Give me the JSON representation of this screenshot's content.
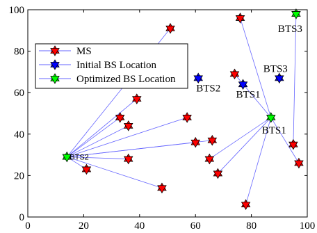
{
  "chart_data": {
    "type": "scatter",
    "title": "",
    "xlabel": "",
    "ylabel": "",
    "xlim": [
      0,
      100
    ],
    "ylim": [
      0,
      100
    ],
    "xticks": [
      "0",
      "20",
      "40",
      "60",
      "80",
      "100"
    ],
    "yticks": [
      "0",
      "20",
      "40",
      "60",
      "80",
      "100"
    ],
    "grid": false,
    "legend_position": "upper-left",
    "legend": [
      {
        "label": "MS",
        "color": "#ff0000"
      },
      {
        "label": "Initial BS Location",
        "color": "#0000ff"
      },
      {
        "label": "Optimized BS Location",
        "color": "#00ff00"
      }
    ],
    "ms": [
      [
        51,
        91
      ],
      [
        39,
        57
      ],
      [
        33,
        48
      ],
      [
        36,
        44
      ],
      [
        57,
        48
      ],
      [
        60,
        36
      ],
      [
        66,
        37
      ],
      [
        36,
        28
      ],
      [
        21,
        23
      ],
      [
        48,
        14
      ],
      [
        65,
        28
      ],
      [
        68,
        21
      ],
      [
        76,
        96
      ],
      [
        74,
        69
      ],
      [
        78,
        6
      ],
      [
        95,
        35
      ],
      [
        97,
        26
      ]
    ],
    "initial_bs": [
      {
        "label": "BTS2",
        "x": 61,
        "y": 67
      },
      {
        "label": "BTS1",
        "x": 77,
        "y": 64
      },
      {
        "label": "BTS3",
        "x": 90,
        "y": 67
      }
    ],
    "optimized_bs": [
      {
        "label": "BTS2",
        "x": 14,
        "y": 29
      },
      {
        "label": "BTS1",
        "x": 87,
        "y": 48
      },
      {
        "label": "BTS3",
        "x": 96,
        "y": 98
      }
    ],
    "links": [
      {
        "bs": 0,
        "ms": [
          0,
          1,
          2,
          3,
          4,
          5,
          6,
          7,
          8,
          9
        ]
      },
      {
        "bs": 1,
        "ms": [
          10,
          11,
          12,
          13,
          14,
          16
        ]
      },
      {
        "bs": 2,
        "ms": [
          15
        ]
      }
    ]
  },
  "colors": {
    "ms": "#ff0000",
    "initial": "#0000ff",
    "optimized": "#00ff00",
    "link": "#6666ff"
  }
}
